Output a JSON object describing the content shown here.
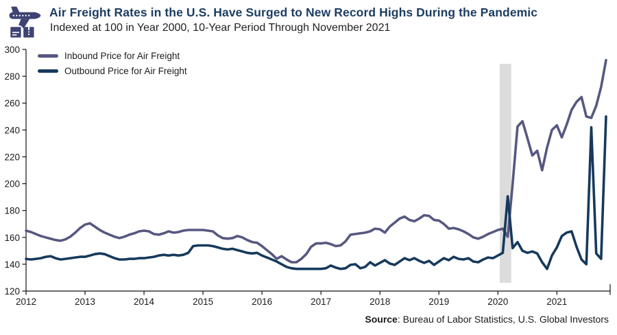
{
  "header": {
    "title": "Air Freight Rates in the U.S. Have Surged to New Record Highs During the Pandemic",
    "subtitle": "Indexed at 100 in Year 2000, 10-Year Period Through November 2021",
    "icon": "cargo-plane-with-boxes-icon",
    "title_color": "#1d3d61"
  },
  "source": {
    "label": "Source",
    "rest": ": Bureau of Labor Statistics, U.S. Global Investors"
  },
  "colors": {
    "inbound_line": "#565880",
    "outbound_line": "#16395c",
    "recession_band": "#dcdcdc",
    "axis": "#111111",
    "icon": "#3e4374"
  },
  "chart_data": {
    "type": "line",
    "title": "Air Freight Rates in the U.S. Have Surged to New Record Highs During the Pandemic",
    "subtitle": "Indexed at 100 in Year 2000, 10-Year Period Through November 2021",
    "x_start": "2012-01",
    "x_end": "2021-11",
    "x_tick_labels": [
      "2012",
      "2013",
      "2014",
      "2015",
      "2016",
      "2017",
      "2018",
      "2019",
      "2020",
      "2021"
    ],
    "y_ticks": [
      120,
      140,
      160,
      180,
      200,
      220,
      240,
      260,
      280,
      300
    ],
    "ylim": [
      120,
      300
    ],
    "grid": false,
    "legend_position": "top-left",
    "recession_band": {
      "from": "2020-02",
      "to": "2020-04",
      "note": "pandemic recession shading"
    },
    "series": [
      {
        "name": "Inbound Price for Air Freight",
        "color": "#565880",
        "values": [
          165,
          164,
          162.5,
          161,
          160,
          159,
          158,
          157.5,
          158.5,
          160.5,
          163.5,
          167,
          169.5,
          170.5,
          168,
          165.5,
          163.5,
          162,
          160.5,
          159.5,
          160.5,
          162,
          163,
          164.5,
          165,
          164.5,
          162.5,
          162,
          163,
          164.5,
          163.5,
          164,
          165,
          165.5,
          165.5,
          165.5,
          165.5,
          165,
          164.5,
          161.5,
          159.5,
          159,
          159.5,
          161,
          160,
          158,
          156.5,
          156,
          153.5,
          150.5,
          147.5,
          144,
          146,
          143.5,
          141.5,
          141.5,
          144,
          147.5,
          153,
          155.5,
          155.5,
          156,
          155,
          153.5,
          154,
          157,
          162,
          162.5,
          163,
          163.5,
          164.5,
          166.5,
          166,
          163.5,
          168,
          171,
          174,
          175.5,
          173,
          172,
          174,
          176.5,
          176,
          173,
          172.5,
          170,
          166.5,
          167,
          166,
          164.5,
          162.5,
          160,
          159,
          160.5,
          162.5,
          164,
          165.5,
          166.5,
          160.5,
          200,
          242.5,
          246.5,
          234,
          221,
          224.5,
          210,
          227,
          240,
          243.5,
          234.5,
          244,
          255,
          261,
          264.5,
          250,
          249,
          258,
          272,
          292
        ]
      },
      {
        "name": "Outbound Price for Air Freight",
        "color": "#16395c",
        "values": [
          144,
          143.5,
          144,
          144.5,
          145.5,
          146,
          144.5,
          143.5,
          144,
          144.5,
          145,
          145.5,
          145.5,
          146.5,
          147.5,
          148,
          147.5,
          146,
          144.5,
          143.5,
          143.5,
          144,
          144,
          144.5,
          144.5,
          145,
          145.5,
          146.5,
          147,
          146.5,
          147,
          146.5,
          147,
          148.5,
          153.5,
          154,
          154,
          154,
          153.5,
          152.5,
          151.5,
          151,
          151.5,
          150.5,
          149.5,
          148.5,
          148,
          148.5,
          146.5,
          145,
          143.5,
          142,
          140,
          138,
          137,
          136.5,
          136.5,
          136.5,
          136.5,
          136.5,
          136.5,
          137,
          139,
          137.5,
          136.5,
          137,
          139.5,
          140,
          137,
          138,
          141.5,
          139,
          141,
          143,
          140.5,
          139.5,
          142,
          144.5,
          143,
          144.5,
          142.5,
          141,
          142.5,
          139.5,
          142,
          144.5,
          143,
          145.5,
          144,
          143.5,
          144.5,
          142,
          141.5,
          143.5,
          145,
          144.5,
          146.5,
          148.5,
          190.5,
          152,
          156.5,
          150,
          148.5,
          149.5,
          148,
          141.5,
          136.5,
          146.5,
          152.5,
          161,
          163.5,
          164.5,
          153,
          143.5,
          140,
          242,
          148,
          144,
          250
        ]
      }
    ]
  }
}
